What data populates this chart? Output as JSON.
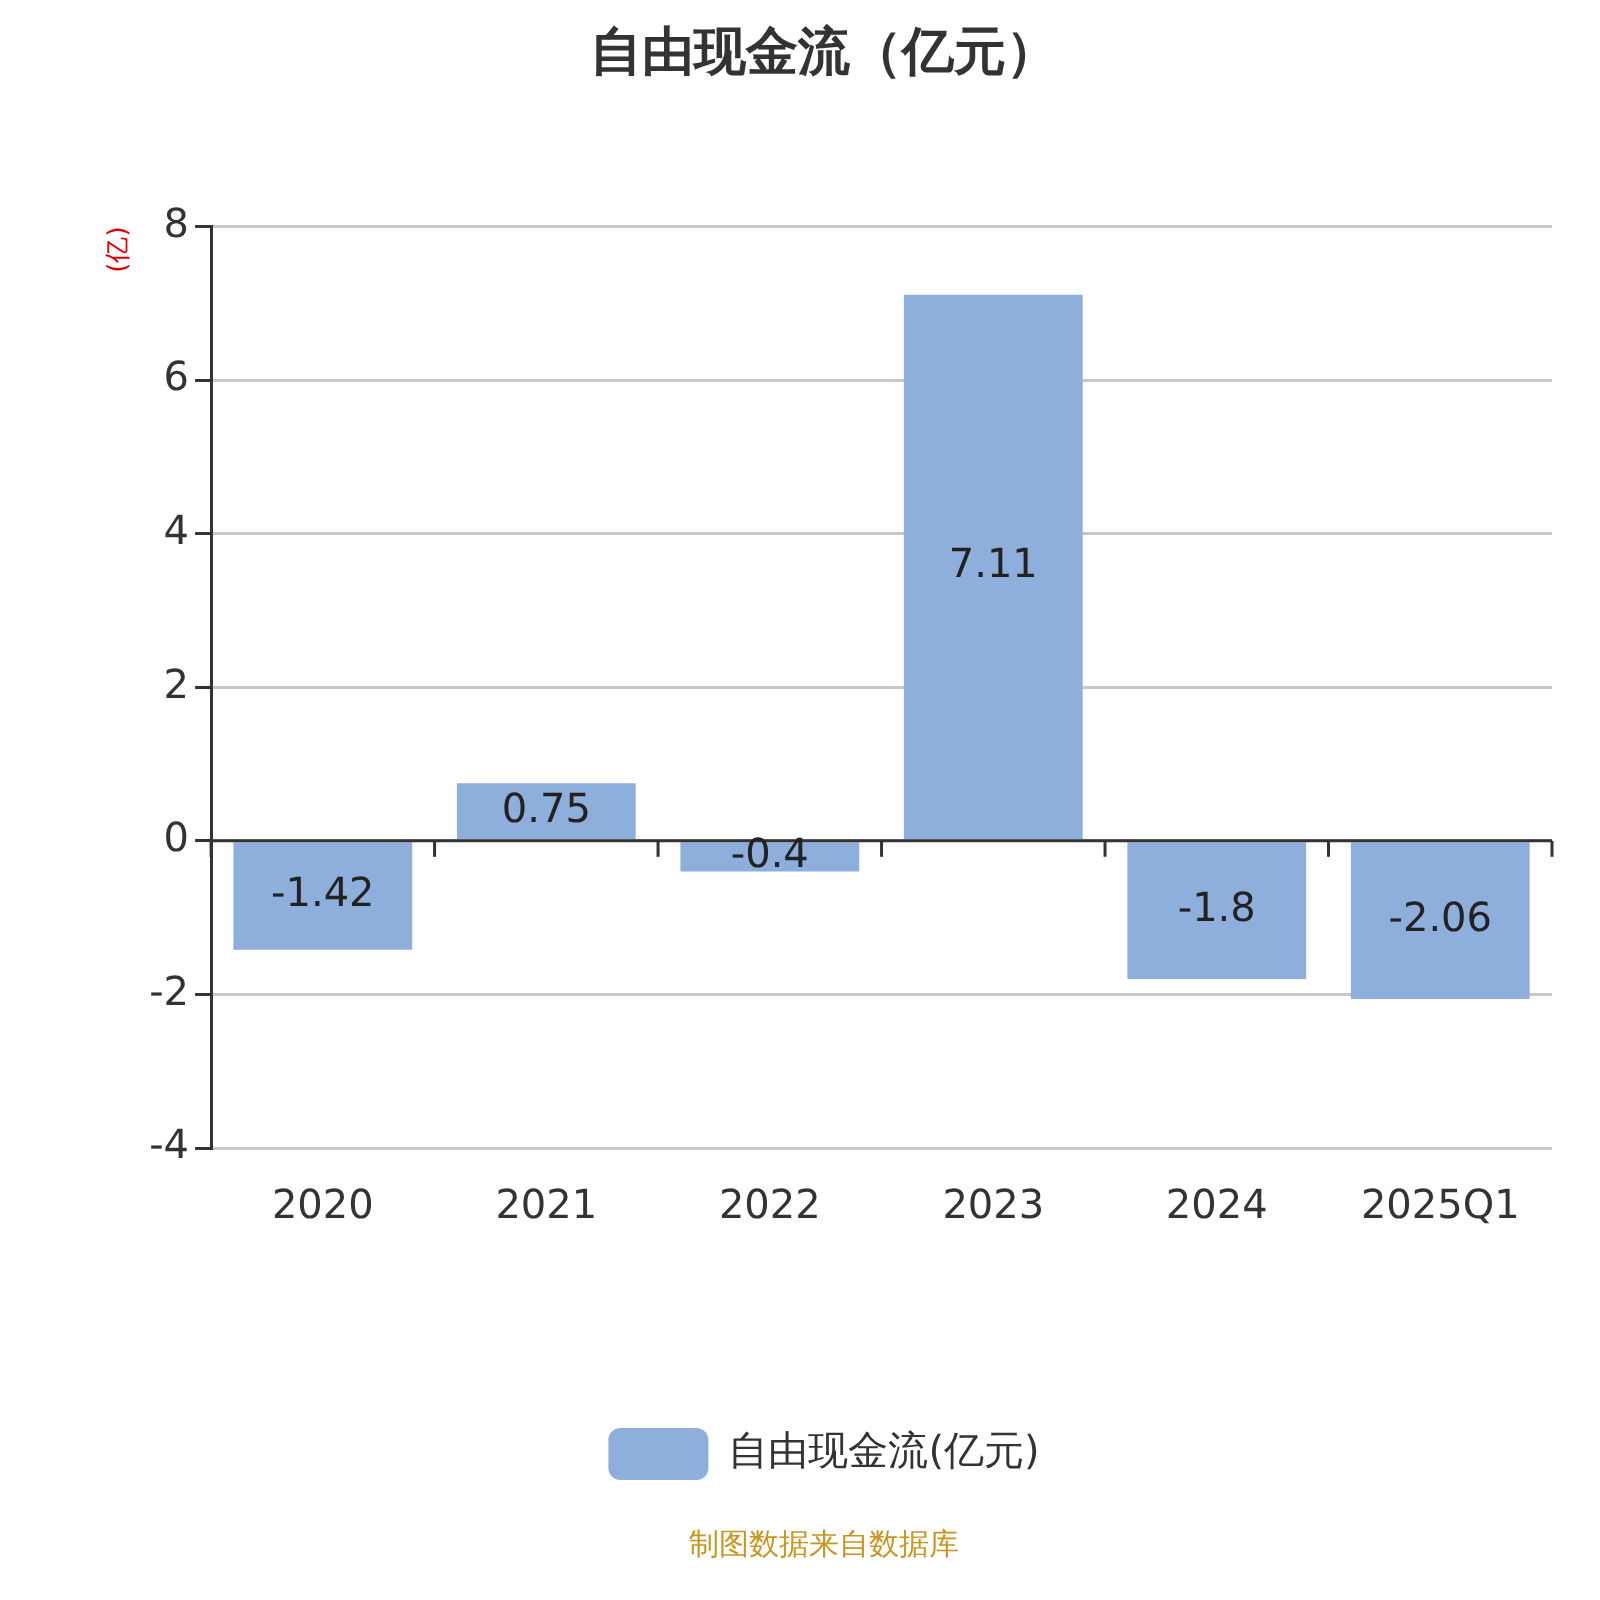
{
  "chart_data": {
    "type": "bar",
    "title": "自由现金流（亿元）",
    "ylabel": "(亿)",
    "categories": [
      "2020",
      "2021",
      "2022",
      "2023",
      "2024",
      "2025Q1"
    ],
    "series": [
      {
        "name": "自由现金流(亿元)",
        "color": "#8eaedb",
        "values": [
          -1.42,
          0.75,
          -0.4,
          7.11,
          -1.8,
          -2.06
        ]
      }
    ],
    "ylim": [
      -4,
      8
    ],
    "yticks": [
      -4,
      -2,
      0,
      2,
      4,
      6,
      8
    ],
    "grid": "y",
    "legend": "bottom",
    "data_labels": true,
    "annotations": [
      "制图数据来自数据库"
    ]
  }
}
